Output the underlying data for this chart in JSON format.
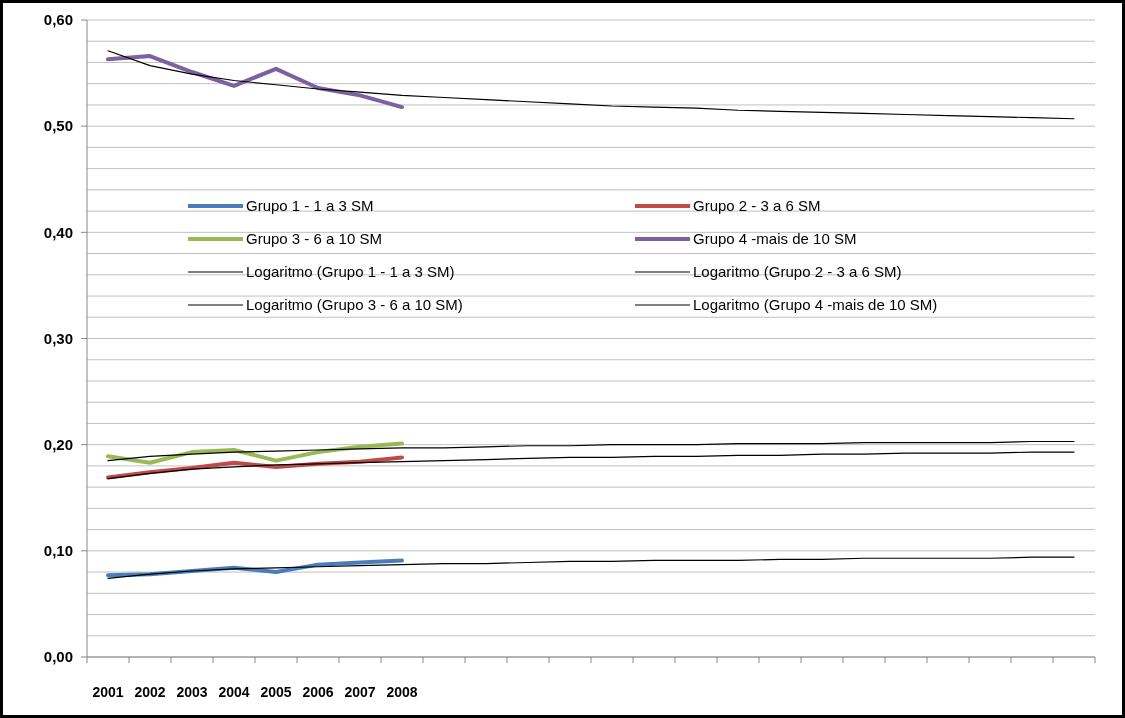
{
  "chart_data": {
    "type": "line",
    "categories": [
      "2001",
      "2002",
      "2003",
      "2004",
      "2005",
      "2006",
      "2007",
      "2008",
      null,
      null,
      null,
      null,
      null,
      null,
      null,
      null,
      null,
      null,
      null,
      null,
      null,
      null,
      null,
      null
    ],
    "ylim": [
      0,
      0.6
    ],
    "yticks": [
      {
        "value": 0,
        "label": "0,00"
      },
      {
        "value": 0.02,
        "label": null
      },
      {
        "value": 0.04,
        "label": null
      },
      {
        "value": 0.06,
        "label": null
      },
      {
        "value": 0.08,
        "label": null
      },
      {
        "value": 0.1,
        "label": "0,10"
      },
      {
        "value": 0.12,
        "label": null
      },
      {
        "value": 0.14,
        "label": null
      },
      {
        "value": 0.16,
        "label": null
      },
      {
        "value": 0.18,
        "label": null
      },
      {
        "value": 0.2,
        "label": "0,20"
      },
      {
        "value": 0.22,
        "label": null
      },
      {
        "value": 0.24,
        "label": null
      },
      {
        "value": 0.26,
        "label": null
      },
      {
        "value": 0.28,
        "label": null
      },
      {
        "value": 0.3,
        "label": "0,30"
      },
      {
        "value": 0.32,
        "label": null
      },
      {
        "value": 0.34,
        "label": null
      },
      {
        "value": 0.36,
        "label": null
      },
      {
        "value": 0.38,
        "label": null
      },
      {
        "value": 0.4,
        "label": "0,40"
      },
      {
        "value": 0.42,
        "label": null
      },
      {
        "value": 0.44,
        "label": null
      },
      {
        "value": 0.46,
        "label": null
      },
      {
        "value": 0.48,
        "label": null
      },
      {
        "value": 0.5,
        "label": "0,50"
      },
      {
        "value": 0.52,
        "label": null
      },
      {
        "value": 0.54,
        "label": null
      },
      {
        "value": 0.56,
        "label": null
      },
      {
        "value": 0.58,
        "label": null
      },
      {
        "value": 0.6,
        "label": "0,60"
      }
    ],
    "grid": "y",
    "legend": "top",
    "marker": "none",
    "line_style": "solid",
    "series": [
      {
        "name": "Grupo 1 - 1 a 3 SM",
        "color": "#4a7ebb",
        "values": [
          0.077,
          0.078,
          0.081,
          0.084,
          0.08,
          0.087,
          0.089,
          0.091,
          null,
          null,
          null,
          null,
          null,
          null,
          null,
          null,
          null,
          null,
          null,
          null,
          null,
          null,
          null,
          null
        ]
      },
      {
        "name": "Grupo 2 - 3 a 6 SM",
        "color": "#be4b48",
        "values": [
          0.169,
          0.174,
          0.178,
          0.183,
          0.179,
          0.182,
          0.184,
          0.188,
          null,
          null,
          null,
          null,
          null,
          null,
          null,
          null,
          null,
          null,
          null,
          null,
          null,
          null,
          null,
          null
        ]
      },
      {
        "name": "Grupo 3 - 6 a 10 SM",
        "color": "#98b954",
        "values": [
          0.189,
          0.183,
          0.193,
          0.195,
          0.185,
          0.193,
          0.198,
          0.201,
          null,
          null,
          null,
          null,
          null,
          null,
          null,
          null,
          null,
          null,
          null,
          null,
          null,
          null,
          null,
          null
        ]
      },
      {
        "name": "Grupo 4 -mais de 10 SM",
        "color": "#7d60a0",
        "values": [
          0.563,
          0.566,
          0.551,
          0.538,
          0.554,
          0.536,
          0.529,
          0.518,
          null,
          null,
          null,
          null,
          null,
          null,
          null,
          null,
          null,
          null,
          null,
          null,
          null,
          null,
          null,
          null
        ]
      },
      {
        "name": "Logaritmo (Grupo 1 - 1 a 3 SM)",
        "color": "#000000",
        "values": [
          0.074,
          0.078,
          0.081,
          0.083,
          0.084,
          0.085,
          0.086,
          0.087,
          0.088,
          0.088,
          0.089,
          0.09,
          0.09,
          0.091,
          0.091,
          0.091,
          0.092,
          0.092,
          0.093,
          0.093,
          0.093,
          0.093,
          0.094,
          0.094
        ]
      },
      {
        "name": "Logaritmo (Grupo 2 - 3 a 6 SM)",
        "color": "#000000",
        "values": [
          0.168,
          0.173,
          0.177,
          0.179,
          0.181,
          0.182,
          0.183,
          0.184,
          0.185,
          0.186,
          0.187,
          0.188,
          0.188,
          0.189,
          0.189,
          0.19,
          0.19,
          0.191,
          0.191,
          0.192,
          0.192,
          0.192,
          0.193,
          0.193
        ]
      },
      {
        "name": "Logaritmo (Grupo 3 - 6 a 10 SM)",
        "color": "#000000",
        "values": [
          0.185,
          0.189,
          0.191,
          0.193,
          0.194,
          0.195,
          0.196,
          0.197,
          0.197,
          0.198,
          0.199,
          0.199,
          0.2,
          0.2,
          0.2,
          0.201,
          0.201,
          0.201,
          0.202,
          0.202,
          0.202,
          0.202,
          0.203,
          0.203
        ]
      },
      {
        "name": "Logaritmo (Grupo 4 -mais de 10 SM)",
        "color": "#000000",
        "values": [
          0.571,
          0.557,
          0.549,
          0.543,
          0.539,
          0.535,
          0.532,
          0.529,
          0.527,
          0.525,
          0.523,
          0.521,
          0.519,
          0.518,
          0.517,
          0.515,
          0.514,
          0.513,
          0.512,
          0.511,
          0.51,
          0.509,
          0.508,
          0.507
        ]
      }
    ]
  }
}
